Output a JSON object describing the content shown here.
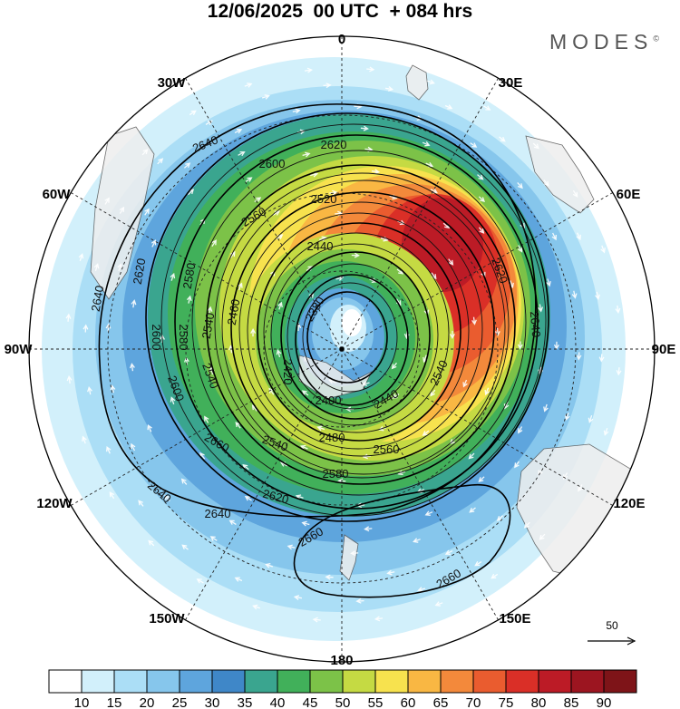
{
  "header": {
    "title": "12/06/2025  00 UTC  + 084 hrs",
    "brand": "MODES",
    "brand_mark": "©"
  },
  "map": {
    "projection": "polar-stereographic",
    "longitude_labels": [
      "0",
      "30E",
      "60E",
      "90E",
      "120E",
      "150E",
      "180",
      "150W",
      "120W",
      "90W",
      "60W",
      "30W"
    ],
    "contour_labels": [
      "2380",
      "2400",
      "2420",
      "2440",
      "2460",
      "2480",
      "2500",
      "2520",
      "2540",
      "2560",
      "2580",
      "2600",
      "2620",
      "2640",
      "2660"
    ],
    "reference_vector": "50"
  },
  "colorbar": {
    "ticks": [
      "10",
      "15",
      "20",
      "25",
      "30",
      "35",
      "40",
      "45",
      "50",
      "55",
      "60",
      "65",
      "70",
      "75",
      "80",
      "85",
      "90"
    ],
    "colors": [
      "#ffffff",
      "#d2f0fb",
      "#abdef6",
      "#86c6ec",
      "#5ea5dd",
      "#3f87c8",
      "#3aa58f",
      "#41b05a",
      "#7cc248",
      "#c5da43",
      "#f7e24e",
      "#f9b743",
      "#f3893b",
      "#ea5c2f",
      "#da2f27",
      "#bc1b26",
      "#9c1520",
      "#7e1418"
    ]
  }
}
